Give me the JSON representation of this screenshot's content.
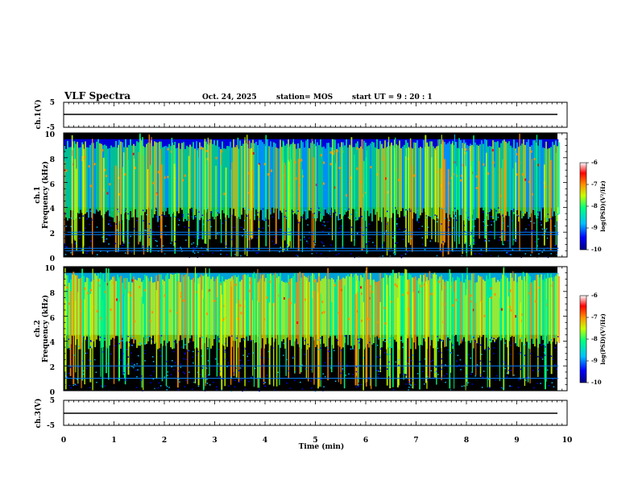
{
  "header": {
    "title": "VLF Spectra",
    "date": "Oct. 24, 2025",
    "station": "station= MOS",
    "start_ut": "start UT =  9 : 20 : 1"
  },
  "chart_data": [
    {
      "type": "line",
      "panel": "ch.1(V)",
      "ylabel": "ch.1(V)",
      "ylim": [
        -5,
        5
      ],
      "yticks": [
        "5",
        "-5"
      ],
      "x": [
        0,
        10
      ],
      "y": [
        0,
        0
      ],
      "color": "#000000"
    },
    {
      "type": "heatmap",
      "panel": "ch.1 spectrogram",
      "ylabel": [
        "ch.1",
        "Frequency (kHz)"
      ],
      "ylim": [
        0,
        10
      ],
      "yticks": [
        "0",
        "2",
        "4",
        "6",
        "8",
        "10"
      ],
      "xlim": [
        0,
        9.83
      ],
      "colorbar": {
        "label": "log(PSD)(V²/Hz)",
        "ticks": [
          "-6",
          "-7",
          "-8",
          "-9",
          "-10"
        ],
        "range": [
          -10,
          -6
        ]
      },
      "bands_khz": [
        {
          "from": 4,
          "to": 9.5,
          "level": -8.3
        }
      ],
      "horizontal_lines_khz": [
        0.5,
        0.7,
        1.8,
        2.0
      ]
    },
    {
      "type": "heatmap",
      "panel": "ch.2 spectrogram",
      "ylabel": [
        "ch.2",
        "Frequency (kHz)"
      ],
      "ylim": [
        0,
        10
      ],
      "yticks": [
        "0",
        "2",
        "4",
        "6",
        "8",
        "10"
      ],
      "xlim": [
        0,
        9.83
      ],
      "colorbar": {
        "label": "log(PSD)(V²/Hz)",
        "ticks": [
          "-6",
          "-7",
          "-8",
          "-9",
          "-10"
        ],
        "range": [
          -10,
          -6
        ]
      },
      "bands_khz": [
        {
          "from": 4.5,
          "to": 9.5,
          "level": -7.8
        }
      ],
      "horizontal_lines_khz": [
        1.0,
        2.0
      ]
    },
    {
      "type": "line",
      "panel": "ch.3(V)",
      "ylabel": "ch.3(V)",
      "ylim": [
        -5,
        5
      ],
      "yticks": [
        "5",
        "-5"
      ],
      "x": [
        0,
        10
      ],
      "y": [
        0,
        0
      ],
      "color": "#000000"
    }
  ],
  "x_axis": {
    "label": "Time  (min)",
    "ticks": [
      "0",
      "1",
      "2",
      "3",
      "4",
      "5",
      "6",
      "7",
      "8",
      "9",
      "10"
    ],
    "xlim": [
      0,
      10
    ]
  },
  "colors": {
    "background": "#000000",
    "colormap": [
      "#000080",
      "#0000ff",
      "#00bfff",
      "#00ff80",
      "#c8ff00",
      "#ff9000",
      "#ff0000",
      "#ffffff"
    ]
  }
}
